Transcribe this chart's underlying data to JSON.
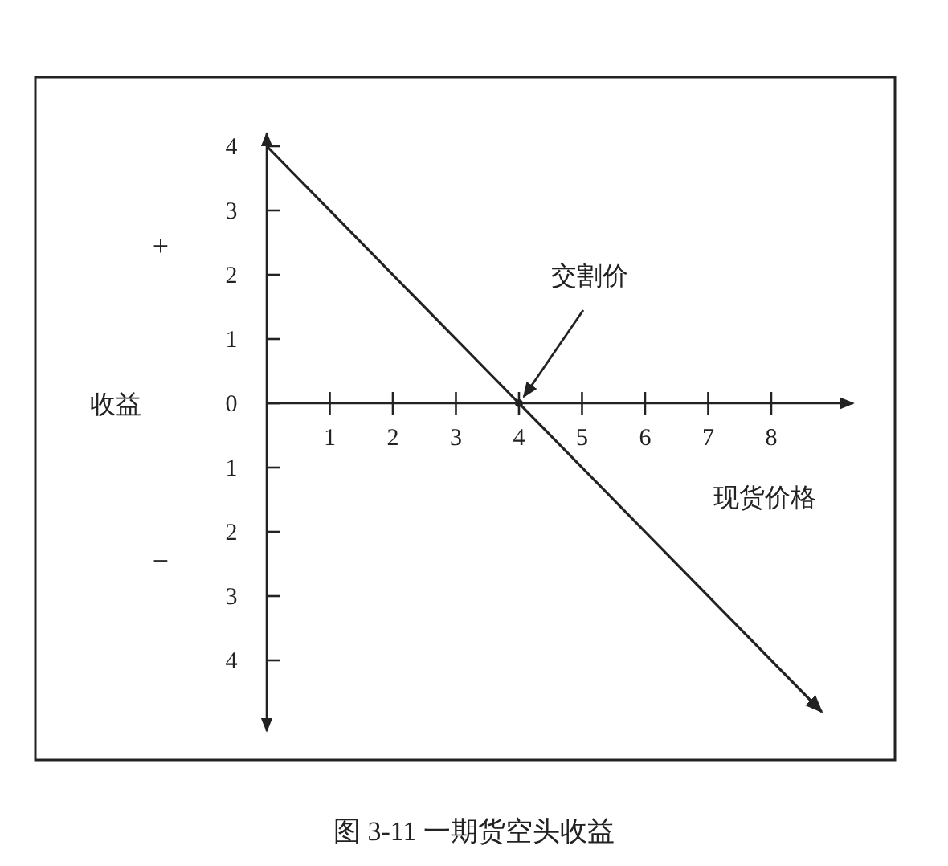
{
  "chart_data": {
    "type": "line",
    "title": "图 3-11 一期货空头收益",
    "xlabel": "现货价格",
    "ylabel": "收益",
    "x": [
      0,
      4,
      8.8
    ],
    "series": [
      {
        "color": "#222222",
        "values": [
          4,
          0,
          -4.8
        ]
      }
    ],
    "xlim": [
      0,
      9.3
    ],
    "ylim": [
      -5.1,
      4.2
    ],
    "xticks": [
      1,
      2,
      3,
      4,
      5,
      6,
      7,
      8
    ],
    "yticks": [
      4,
      3,
      2,
      1,
      0,
      {
        "value": -1,
        "label": "1"
      },
      {
        "value": -2,
        "label": "2"
      },
      {
        "value": -3,
        "label": "3"
      },
      {
        "value": -4,
        "label": "4"
      }
    ],
    "annotations": [
      {
        "text": "交割价",
        "x": 4,
        "y": 0
      },
      "+",
      "−"
    ]
  }
}
